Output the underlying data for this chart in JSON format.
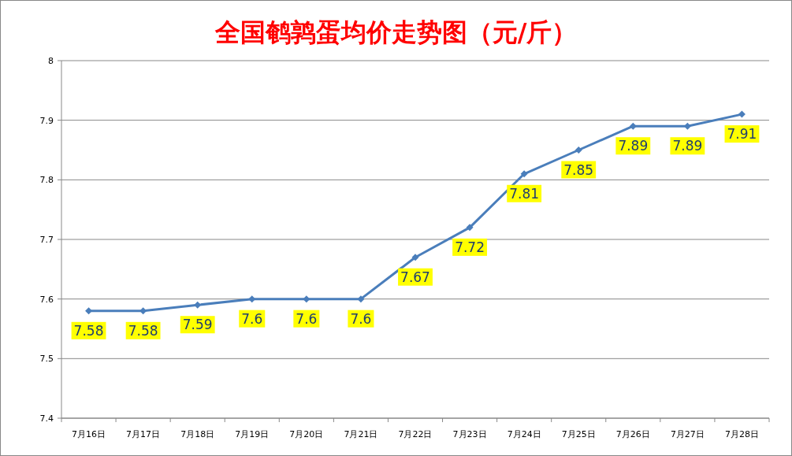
{
  "chart_data": {
    "type": "line",
    "title": "全国鹌鹑蛋均价走势图（元/斤）",
    "categories": [
      "7月16日",
      "7月17日",
      "7月18日",
      "7月19日",
      "7月20日",
      "7月21日",
      "7月22日",
      "7月23日",
      "7月24日",
      "7月25日",
      "7月26日",
      "7月27日",
      "7月28日"
    ],
    "series": [
      {
        "color": "#4a7ebb",
        "values": [
          7.58,
          7.58,
          7.59,
          7.6,
          7.6,
          7.6,
          7.67,
          7.72,
          7.81,
          7.85,
          7.89,
          7.89,
          7.91
        ]
      }
    ],
    "ylim": [
      7.4,
      8
    ],
    "yticks": [
      7.4,
      7.5,
      7.6,
      7.7,
      7.8,
      7.9,
      8
    ],
    "grid": "y",
    "marker": "diamond",
    "line_style": "solid",
    "data_labels": true
  }
}
